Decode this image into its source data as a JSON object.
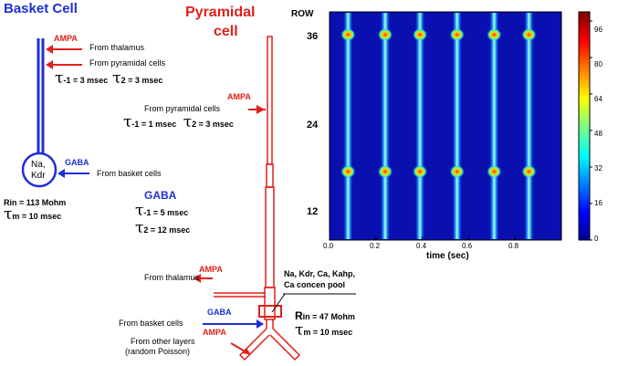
{
  "basket": {
    "title": "Basket Cell",
    "ampa": "AMPA",
    "from_thalamus": "From thalamus",
    "from_pyramidal": "From pyramidal cells",
    "tau1": "-1",
    "tau1_val": " = 3 msec",
    "tau2": "2",
    "tau2_val": " = 3 msec",
    "soma_line1": "Na,",
    "soma_line2": "Kdr",
    "gaba": "GABA",
    "from_basket": "From basket cells",
    "rin": "Rin = 113 Mohm",
    "tm": "m",
    "tm_val": " = 10 msec"
  },
  "pyramidal": {
    "title_line1": "Pyramidal",
    "title_line2": "cell",
    "ampa": "AMPA",
    "from_pyramidal": "From pyramidal cells",
    "tau1": "-1",
    "tau1_val": " = 1 msec",
    "tau2": "2",
    "tau2_val": " = 3 msec",
    "gaba": "GABA",
    "gaba_tau1": "-1",
    "gaba_tau1_val": " = 5 msec",
    "gaba_tau2": "2",
    "gaba_tau2_val": " = 12 msec",
    "ampa_thal": "AMPA",
    "from_thalamus": "From thalamus",
    "channels_line1": "Na, Kdr, Ca, Kahp,",
    "channels_line2": "Ca concen pool",
    "gaba_basket": "GABA",
    "from_basket": "From basket cells",
    "rin_r": "R",
    "rin_sub": "in",
    "rin_val": " = 47 Mohm",
    "tm": "m",
    "tm_val": " = 10 msec",
    "ampa_other": "AMPA",
    "from_other_line1": "From other layers",
    "from_other_line2": "(random Poisson)"
  },
  "raster": {
    "ylabel": "ROW",
    "xlabel": "time (sec)",
    "row_ticks": [
      "36",
      "24",
      "12"
    ],
    "time_ticks": [
      "0.0",
      "0.2",
      "0.4",
      "0.6",
      "0.8"
    ],
    "colorbar_ticks": [
      "96",
      "80",
      "64",
      "48",
      "32",
      "16",
      "0"
    ]
  },
  "colors": {
    "red": "#e0201a",
    "blue": "#1e2ed6",
    "raster_bg": "#0a10b0"
  },
  "chart_data": {
    "type": "heatmap",
    "title": "",
    "xlabel": "time (sec)",
    "ylabel": "ROW",
    "xlim": [
      0,
      1
    ],
    "ylim": [
      0,
      40
    ],
    "x_ticks": [
      0.0,
      0.2,
      0.4,
      0.6,
      0.8
    ],
    "y_ticks": [
      12,
      24,
      36
    ],
    "colorbar_range": [
      0,
      100
    ],
    "colorbar_ticks": [
      0,
      16,
      32,
      48,
      64,
      80,
      96
    ],
    "burst_times_sec": [
      0.08,
      0.24,
      0.39,
      0.55,
      0.71,
      0.86
    ],
    "hot_rows": [
      12,
      36
    ]
  }
}
